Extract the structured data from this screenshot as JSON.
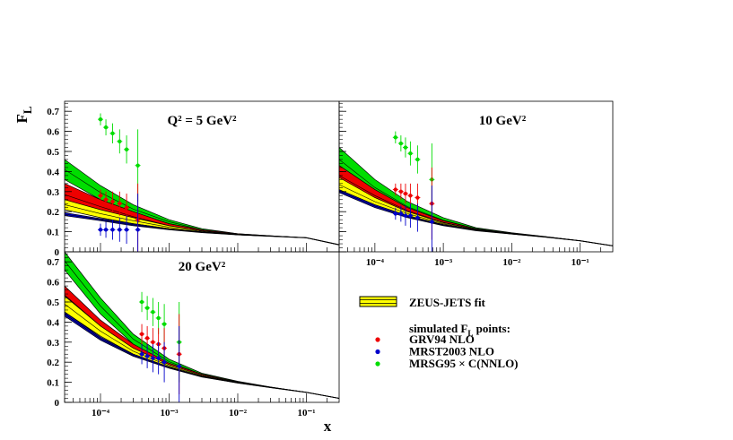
{
  "chart_data": [
    {
      "type": "line",
      "title": "Q² = 5 GeV²",
      "xlabel": "",
      "ylabel": "F_L",
      "xscale": "log",
      "xlim": [
        3e-05,
        0.3
      ],
      "ylim": [
        0,
        0.75
      ],
      "yticks": [
        "0",
        "0.1",
        "0.2",
        "0.3",
        "0.4",
        "0.5",
        "0.6",
        "0.7"
      ],
      "xticks": [],
      "bands": [
        {
          "name": "MRSG95 × C(NNLO)",
          "color": "#00dd00",
          "x": [
            3e-05,
            0.0001,
            0.0003,
            0.001,
            0.003,
            0.01,
            0.03,
            0.1,
            0.3
          ],
          "lower": [
            0.36,
            0.26,
            0.19,
            0.14,
            0.105,
            0.085,
            0.078,
            0.07,
            0.035
          ],
          "upper": [
            0.46,
            0.33,
            0.235,
            0.16,
            0.115,
            0.09,
            0.08,
            0.07,
            0.035
          ]
        },
        {
          "name": "GRV94 NLO",
          "color": "#ee0000",
          "x": [
            3e-05,
            0.0001,
            0.0003,
            0.001,
            0.003,
            0.01,
            0.03,
            0.1,
            0.3
          ],
          "lower": [
            0.23,
            0.19,
            0.15,
            0.12,
            0.1,
            0.085,
            0.078,
            0.07,
            0.035
          ],
          "upper": [
            0.34,
            0.26,
            0.2,
            0.14,
            0.11,
            0.09,
            0.08,
            0.07,
            0.035
          ]
        },
        {
          "name": "ZEUS-JETS fit",
          "color": "#ffff00",
          "x": [
            3e-05,
            0.0001,
            0.0003,
            0.001,
            0.003,
            0.01,
            0.03,
            0.1,
            0.3
          ],
          "lower": [
            0.21,
            0.17,
            0.14,
            0.115,
            0.1,
            0.085,
            0.078,
            0.07,
            0.035
          ],
          "upper": [
            0.26,
            0.21,
            0.17,
            0.13,
            0.105,
            0.088,
            0.079,
            0.07,
            0.035
          ]
        },
        {
          "name": "MRST2003 NLO",
          "color": "#0000cc",
          "x": [
            3e-05,
            0.0001,
            0.0003,
            0.001,
            0.003,
            0.01,
            0.03,
            0.1,
            0.3
          ],
          "lower": [
            0.18,
            0.155,
            0.13,
            0.11,
            0.095,
            0.084,
            0.077,
            0.069,
            0.034
          ],
          "upper": [
            0.195,
            0.165,
            0.14,
            0.115,
            0.099,
            0.086,
            0.079,
            0.071,
            0.036
          ]
        }
      ],
      "points": [
        {
          "name": "MRSG95 × C(NNLO)",
          "color": "#00dd00",
          "x": [
            0.0001,
            0.00012,
            0.00015,
            0.00019,
            0.00024,
            0.00035
          ],
          "y": [
            0.66,
            0.62,
            0.59,
            0.55,
            0.51,
            0.43
          ],
          "err": [
            0.03,
            0.04,
            0.05,
            0.06,
            0.07,
            0.18
          ]
        },
        {
          "name": "GRV94 NLO",
          "color": "#ee0000",
          "x": [
            0.0001,
            0.00012,
            0.00015,
            0.00019,
            0.00024,
            0.00035
          ],
          "y": [
            0.28,
            0.26,
            0.25,
            0.24,
            0.22,
            0.16
          ],
          "err": [
            0.03,
            0.04,
            0.05,
            0.06,
            0.07,
            0.18
          ]
        },
        {
          "name": "MRST2003 NLO",
          "color": "#0000cc",
          "x": [
            0.0001,
            0.00012,
            0.00015,
            0.00019,
            0.00024,
            0.00035
          ],
          "y": [
            0.11,
            0.11,
            0.11,
            0.11,
            0.11,
            0.11
          ],
          "err": [
            0.03,
            0.04,
            0.05,
            0.06,
            0.07,
            0.18
          ]
        }
      ]
    },
    {
      "type": "line",
      "title": "10 GeV²",
      "xlabel": "",
      "ylabel": "",
      "xscale": "log",
      "xlim": [
        3e-05,
        0.3
      ],
      "ylim": [
        0,
        0.75
      ],
      "yticks": [],
      "xticks": [
        "10⁻⁴",
        "10⁻³",
        "10⁻²",
        "10⁻¹"
      ],
      "bands": [
        {
          "name": "MRSG95 × C(NNLO)",
          "color": "#00dd00",
          "x": [
            3e-05,
            0.0001,
            0.0003,
            0.001,
            0.003,
            0.01,
            0.03,
            0.1,
            0.3
          ],
          "lower": [
            0.4,
            0.28,
            0.2,
            0.145,
            0.11,
            0.09,
            0.075,
            0.055,
            0.03
          ],
          "upper": [
            0.52,
            0.36,
            0.25,
            0.17,
            0.12,
            0.095,
            0.077,
            0.055,
            0.03
          ]
        },
        {
          "name": "GRV94 NLO",
          "color": "#ee0000",
          "x": [
            3e-05,
            0.0001,
            0.0003,
            0.001,
            0.003,
            0.01,
            0.03,
            0.1,
            0.3
          ],
          "lower": [
            0.33,
            0.25,
            0.19,
            0.14,
            0.11,
            0.09,
            0.074,
            0.055,
            0.03
          ],
          "upper": [
            0.43,
            0.31,
            0.22,
            0.155,
            0.115,
            0.093,
            0.076,
            0.055,
            0.03
          ]
        },
        {
          "name": "ZEUS-JETS fit",
          "color": "#ffff00",
          "x": [
            3e-05,
            0.0001,
            0.0003,
            0.001,
            0.003,
            0.01,
            0.03,
            0.1,
            0.3
          ],
          "lower": [
            0.3,
            0.23,
            0.18,
            0.135,
            0.108,
            0.089,
            0.074,
            0.055,
            0.03
          ],
          "upper": [
            0.37,
            0.27,
            0.2,
            0.145,
            0.112,
            0.091,
            0.075,
            0.055,
            0.03
          ]
        },
        {
          "name": "MRST2003 NLO",
          "color": "#0000cc",
          "x": [
            3e-05,
            0.0001,
            0.0003,
            0.001,
            0.003,
            0.01,
            0.03,
            0.1,
            0.3
          ],
          "lower": [
            0.295,
            0.22,
            0.17,
            0.13,
            0.105,
            0.088,
            0.073,
            0.054,
            0.029
          ],
          "upper": [
            0.31,
            0.235,
            0.18,
            0.136,
            0.109,
            0.09,
            0.075,
            0.056,
            0.031
          ]
        }
      ],
      "points": [
        {
          "name": "MRSG95 × C(NNLO)",
          "color": "#00dd00",
          "x": [
            0.0002,
            0.00024,
            0.00028,
            0.00033,
            0.00042,
            0.00068
          ],
          "y": [
            0.57,
            0.54,
            0.52,
            0.49,
            0.46,
            0.36
          ],
          "err": [
            0.03,
            0.04,
            0.05,
            0.06,
            0.07,
            0.18
          ]
        },
        {
          "name": "GRV94 NLO",
          "color": "#ee0000",
          "x": [
            0.0002,
            0.00024,
            0.00028,
            0.00033,
            0.00042,
            0.00068
          ],
          "y": [
            0.31,
            0.3,
            0.29,
            0.28,
            0.27,
            0.24
          ],
          "err": [
            0.03,
            0.04,
            0.05,
            0.06,
            0.07,
            0.18
          ]
        },
        {
          "name": "MRST2003 NLO",
          "color": "#0000cc",
          "x": [
            0.0002,
            0.00024,
            0.00028,
            0.00033,
            0.00042,
            0.00068
          ],
          "y": [
            0.19,
            0.19,
            0.18,
            0.18,
            0.17,
            0.15
          ],
          "err": [
            0.03,
            0.04,
            0.05,
            0.06,
            0.07,
            0.18
          ]
        }
      ]
    },
    {
      "type": "line",
      "title": "20 GeV²",
      "xlabel": "x",
      "ylabel": "",
      "xscale": "log",
      "xlim": [
        3e-05,
        0.3
      ],
      "ylim": [
        0,
        0.75
      ],
      "yticks": [
        "0",
        "0.1",
        "0.2",
        "0.3",
        "0.4",
        "0.5",
        "0.6",
        "0.7"
      ],
      "xticks": [
        "10⁻⁴",
        "10⁻³",
        "10⁻²",
        "10⁻¹"
      ],
      "bands": [
        {
          "name": "MRSG95 × C(NNLO)",
          "color": "#00dd00",
          "x": [
            3e-05,
            0.0001,
            0.0003,
            0.001,
            0.003,
            0.01,
            0.03,
            0.1,
            0.3
          ],
          "lower": [
            0.66,
            0.44,
            0.29,
            0.19,
            0.135,
            0.1,
            0.075,
            0.05,
            0.02
          ],
          "upper": [
            0.75,
            0.52,
            0.34,
            0.215,
            0.145,
            0.105,
            0.077,
            0.05,
            0.02
          ]
        },
        {
          "name": "GRV94 NLO",
          "color": "#ee0000",
          "x": [
            3e-05,
            0.0001,
            0.0003,
            0.001,
            0.003,
            0.01,
            0.03,
            0.1,
            0.3
          ],
          "lower": [
            0.49,
            0.35,
            0.25,
            0.18,
            0.13,
            0.098,
            0.074,
            0.05,
            0.02
          ],
          "upper": [
            0.58,
            0.41,
            0.29,
            0.195,
            0.14,
            0.102,
            0.076,
            0.05,
            0.02
          ]
        },
        {
          "name": "ZEUS-JETS fit",
          "color": "#ffff00",
          "x": [
            3e-05,
            0.0001,
            0.0003,
            0.001,
            0.003,
            0.01,
            0.03,
            0.1,
            0.3
          ],
          "lower": [
            0.45,
            0.33,
            0.24,
            0.175,
            0.128,
            0.097,
            0.074,
            0.05,
            0.02
          ],
          "upper": [
            0.53,
            0.38,
            0.27,
            0.188,
            0.135,
            0.1,
            0.075,
            0.05,
            0.02
          ]
        },
        {
          "name": "MRST2003 NLO",
          "color": "#0000cc",
          "x": [
            3e-05,
            0.0001,
            0.0003,
            0.001,
            0.003,
            0.01,
            0.03,
            0.1,
            0.3
          ],
          "lower": [
            0.43,
            0.31,
            0.23,
            0.17,
            0.126,
            0.096,
            0.073,
            0.049,
            0.019
          ],
          "upper": [
            0.45,
            0.325,
            0.24,
            0.177,
            0.13,
            0.098,
            0.075,
            0.051,
            0.021
          ]
        }
      ],
      "points": [
        {
          "name": "MRSG95 × C(NNLO)",
          "color": "#00dd00",
          "x": [
            0.0004,
            0.00048,
            0.00058,
            0.0007,
            0.00085,
            0.0014
          ],
          "y": [
            0.5,
            0.47,
            0.45,
            0.42,
            0.39,
            0.3
          ],
          "err": [
            0.05,
            0.06,
            0.07,
            0.08,
            0.1,
            0.2
          ]
        },
        {
          "name": "GRV94 NLO",
          "color": "#ee0000",
          "x": [
            0.0004,
            0.00048,
            0.00058,
            0.0007,
            0.00085,
            0.0014
          ],
          "y": [
            0.34,
            0.32,
            0.3,
            0.29,
            0.27,
            0.24
          ],
          "err": [
            0.05,
            0.06,
            0.07,
            0.08,
            0.1,
            0.2
          ]
        },
        {
          "name": "MRST2003 NLO",
          "color": "#0000cc",
          "x": [
            0.0004,
            0.00048,
            0.00058,
            0.0007,
            0.00085,
            0.0014
          ],
          "y": [
            0.24,
            0.23,
            0.22,
            0.22,
            0.2,
            0.18
          ],
          "err": [
            0.05,
            0.06,
            0.07,
            0.08,
            0.1,
            0.2
          ]
        }
      ]
    }
  ],
  "legend": {
    "band_label": "ZEUS-JETS fit",
    "band_color": "#ffff00",
    "points_header": "simulated F_L points:",
    "entries": [
      {
        "label": "GRV94 NLO",
        "color": "#ee0000"
      },
      {
        "label": "MRST2003 NLO",
        "color": "#0000cc"
      },
      {
        "label": "MRSG95 × C(NNLO)",
        "color": "#00dd00"
      }
    ]
  }
}
